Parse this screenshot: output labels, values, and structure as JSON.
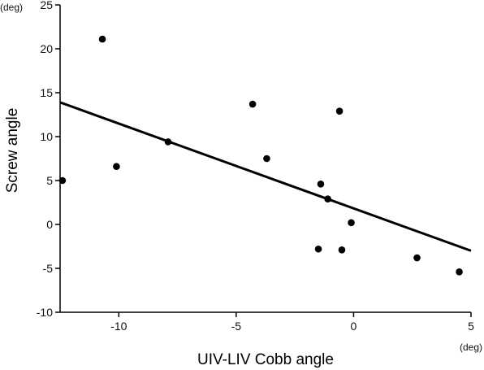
{
  "chart_data": {
    "type": "scatter",
    "xlabel": "UIV-LIV Cobb angle",
    "ylabel": "Screw angle",
    "x_unit": "(deg)",
    "y_unit": "(deg)",
    "xlim": [
      -12.5,
      5
    ],
    "ylim": [
      -10,
      25
    ],
    "x_ticks": [
      -10,
      -5,
      0,
      5
    ],
    "y_ticks": [
      -10,
      -5,
      0,
      5,
      10,
      15,
      20,
      25
    ],
    "grid": false,
    "series": [
      {
        "points": [
          {
            "x": -12.4,
            "y": 5.0
          },
          {
            "x": -10.7,
            "y": 21.1
          },
          {
            "x": -10.1,
            "y": 6.6
          },
          {
            "x": -7.9,
            "y": 9.4
          },
          {
            "x": -4.3,
            "y": 13.7
          },
          {
            "x": -3.7,
            "y": 7.5
          },
          {
            "x": -1.4,
            "y": 4.6
          },
          {
            "x": -1.1,
            "y": 2.9
          },
          {
            "x": -0.6,
            "y": 12.9
          },
          {
            "x": -0.1,
            "y": 0.2
          },
          {
            "x": -1.5,
            "y": -2.8
          },
          {
            "x": -0.5,
            "y": -2.9
          },
          {
            "x": 2.7,
            "y": -3.8
          },
          {
            "x": 4.5,
            "y": -5.4
          }
        ]
      }
    ],
    "regression_line": {
      "x": [
        -12.5,
        5
      ],
      "y": [
        13.9,
        -3.0
      ]
    }
  }
}
